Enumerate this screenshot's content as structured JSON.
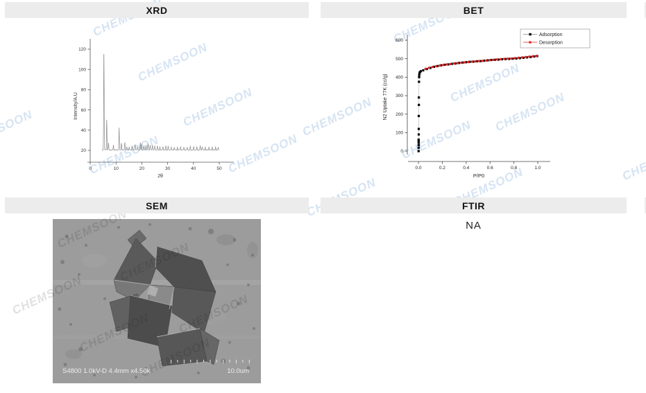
{
  "watermark": {
    "text": "CHEMSOON",
    "color": "#d6e4f3",
    "page_positions": [
      [
        135,
        38
      ],
      [
        200,
        103
      ],
      [
        265,
        168
      ],
      [
        -52,
        200
      ],
      [
        130,
        237
      ],
      [
        330,
        235
      ],
      [
        568,
        48
      ],
      [
        650,
        133
      ],
      [
        715,
        175
      ],
      [
        437,
        182
      ],
      [
        580,
        215
      ],
      [
        898,
        246
      ],
      [
        655,
        283
      ],
      [
        443,
        298
      ]
    ],
    "sem_positions": [
      [
        10,
        42
      ],
      [
        100,
        90
      ],
      [
        -55,
        138
      ],
      [
        42,
        192
      ],
      [
        130,
        228
      ],
      [
        185,
        165
      ]
    ],
    "sem_color": "#1a1a1a"
  },
  "panels": {
    "xrd": {
      "title": "XRD"
    },
    "bet": {
      "title": "BET"
    },
    "sem": {
      "title": "SEM",
      "caption_left": "S4800 1.0kV-D 4.4mm x4.50k",
      "caption_right": "10.0um"
    },
    "ftir": {
      "title": "FTIR",
      "value": "NA"
    }
  },
  "chart_data": [
    {
      "type": "line",
      "name": "xrd-pattern",
      "xlabel": "2θ",
      "ylabel": "Intensity/A.U",
      "xlim": [
        0,
        55
      ],
      "ylim": [
        8,
        130
      ],
      "xticks": [
        0,
        10,
        20,
        30,
        40,
        50
      ],
      "yticks": [
        20,
        40,
        60,
        80,
        100,
        120
      ],
      "baseline": 20,
      "trace_range": [
        4.55,
        50
      ],
      "peak_width": 0.13,
      "line_color": "#8a8a8a",
      "peaks": [
        [
          5.3,
          120
        ],
        [
          6.4,
          50
        ],
        [
          7.1,
          27
        ],
        [
          9.0,
          25
        ],
        [
          11.2,
          42
        ],
        [
          12.1,
          27
        ],
        [
          13.4,
          28
        ],
        [
          14.2,
          23
        ],
        [
          15.1,
          23
        ],
        [
          16.2,
          24
        ],
        [
          17.4,
          26
        ],
        [
          18.3,
          23
        ],
        [
          19.4,
          27
        ],
        [
          19.9,
          26
        ],
        [
          20.8,
          24
        ],
        [
          21.6,
          25
        ],
        [
          22.4,
          26
        ],
        [
          23.2,
          25
        ],
        [
          24.1,
          25
        ],
        [
          25.0,
          24
        ],
        [
          26.0,
          24
        ],
        [
          27.0,
          23.5
        ],
        [
          28.2,
          23.5
        ],
        [
          29.3,
          24
        ],
        [
          30.2,
          23.5
        ],
        [
          31.4,
          23
        ],
        [
          32.6,
          23
        ],
        [
          33.8,
          23
        ],
        [
          35.0,
          23.5
        ],
        [
          36.3,
          23
        ],
        [
          37.6,
          23
        ],
        [
          38.8,
          23.5
        ],
        [
          40.1,
          23
        ],
        [
          41.3,
          23
        ],
        [
          42.6,
          24
        ],
        [
          43.4,
          23.5
        ],
        [
          44.6,
          23
        ],
        [
          46.0,
          23
        ],
        [
          47.3,
          23
        ],
        [
          48.6,
          23
        ],
        [
          49.6,
          22.5
        ]
      ]
    },
    {
      "type": "scatter",
      "name": "bet-isotherm",
      "xlabel": "P/P0",
      "ylabel": "N2 Uptake 77K (cc/g)",
      "xlim": [
        -0.05,
        1.1
      ],
      "ylim": [
        -50,
        640
      ],
      "xticks": [
        0.0,
        0.2,
        0.4,
        0.6,
        0.8,
        1.0
      ],
      "yticks": [
        0,
        100,
        200,
        300,
        400,
        500,
        600
      ],
      "legend_position": "top-right",
      "series": [
        {
          "name": "Adsorption",
          "marker": "square",
          "color": "#000000",
          "line_color": "#b0b0b0",
          "points": [
            [
              0.002,
              0
            ],
            [
              0.002,
              18
            ],
            [
              0.002,
              32
            ],
            [
              0.002,
              45
            ],
            [
              0.002,
              55
            ],
            [
              0.002,
              62
            ],
            [
              0.003,
              90
            ],
            [
              0.003,
              120
            ],
            [
              0.003,
              190
            ],
            [
              0.004,
              250
            ],
            [
              0.004,
              290
            ],
            [
              0.005,
              375
            ],
            [
              0.006,
              400
            ],
            [
              0.007,
              412
            ],
            [
              0.009,
              420
            ],
            [
              0.012,
              427
            ],
            [
              0.02,
              432
            ],
            [
              0.04,
              437
            ],
            [
              0.07,
              444
            ],
            [
              0.1,
              450
            ],
            [
              0.13,
              456
            ],
            [
              0.16,
              460
            ],
            [
              0.19,
              464
            ],
            [
              0.22,
              467
            ],
            [
              0.25,
              469
            ],
            [
              0.28,
              472
            ],
            [
              0.31,
              474
            ],
            [
              0.34,
              477
            ],
            [
              0.37,
              479
            ],
            [
              0.4,
              481
            ],
            [
              0.43,
              483
            ],
            [
              0.46,
              484
            ],
            [
              0.49,
              486
            ],
            [
              0.52,
              487
            ],
            [
              0.55,
              489
            ],
            [
              0.58,
              491
            ],
            [
              0.61,
              493
            ],
            [
              0.64,
              494
            ],
            [
              0.67,
              495
            ],
            [
              0.7,
              497
            ],
            [
              0.73,
              498
            ],
            [
              0.76,
              499
            ],
            [
              0.79,
              500
            ],
            [
              0.82,
              501
            ],
            [
              0.85,
              503
            ],
            [
              0.88,
              505
            ],
            [
              0.91,
              507
            ],
            [
              0.94,
              509
            ],
            [
              0.97,
              512
            ],
            [
              0.995,
              514
            ]
          ]
        },
        {
          "name": "Desorption",
          "marker": "circle",
          "color": "#e02020",
          "line_color": "#f09090",
          "points": [
            [
              0.99,
              515
            ],
            [
              0.96,
              513
            ],
            [
              0.93,
              511
            ],
            [
              0.9,
              509
            ],
            [
              0.87,
              507
            ],
            [
              0.84,
              505
            ],
            [
              0.81,
              503
            ],
            [
              0.78,
              501
            ],
            [
              0.75,
              500
            ],
            [
              0.72,
              499
            ],
            [
              0.69,
              497
            ],
            [
              0.66,
              496
            ],
            [
              0.63,
              494
            ],
            [
              0.6,
              492
            ],
            [
              0.57,
              490
            ],
            [
              0.54,
              488
            ],
            [
              0.51,
              487
            ],
            [
              0.48,
              485
            ],
            [
              0.45,
              484
            ],
            [
              0.42,
              482
            ],
            [
              0.39,
              480
            ],
            [
              0.36,
              478
            ],
            [
              0.33,
              476
            ],
            [
              0.3,
              474
            ],
            [
              0.27,
              471
            ],
            [
              0.24,
              469
            ],
            [
              0.21,
              466
            ],
            [
              0.18,
              463
            ],
            [
              0.15,
              459
            ],
            [
              0.12,
              455
            ],
            [
              0.09,
              451
            ],
            [
              0.06,
              445
            ]
          ]
        }
      ]
    }
  ]
}
